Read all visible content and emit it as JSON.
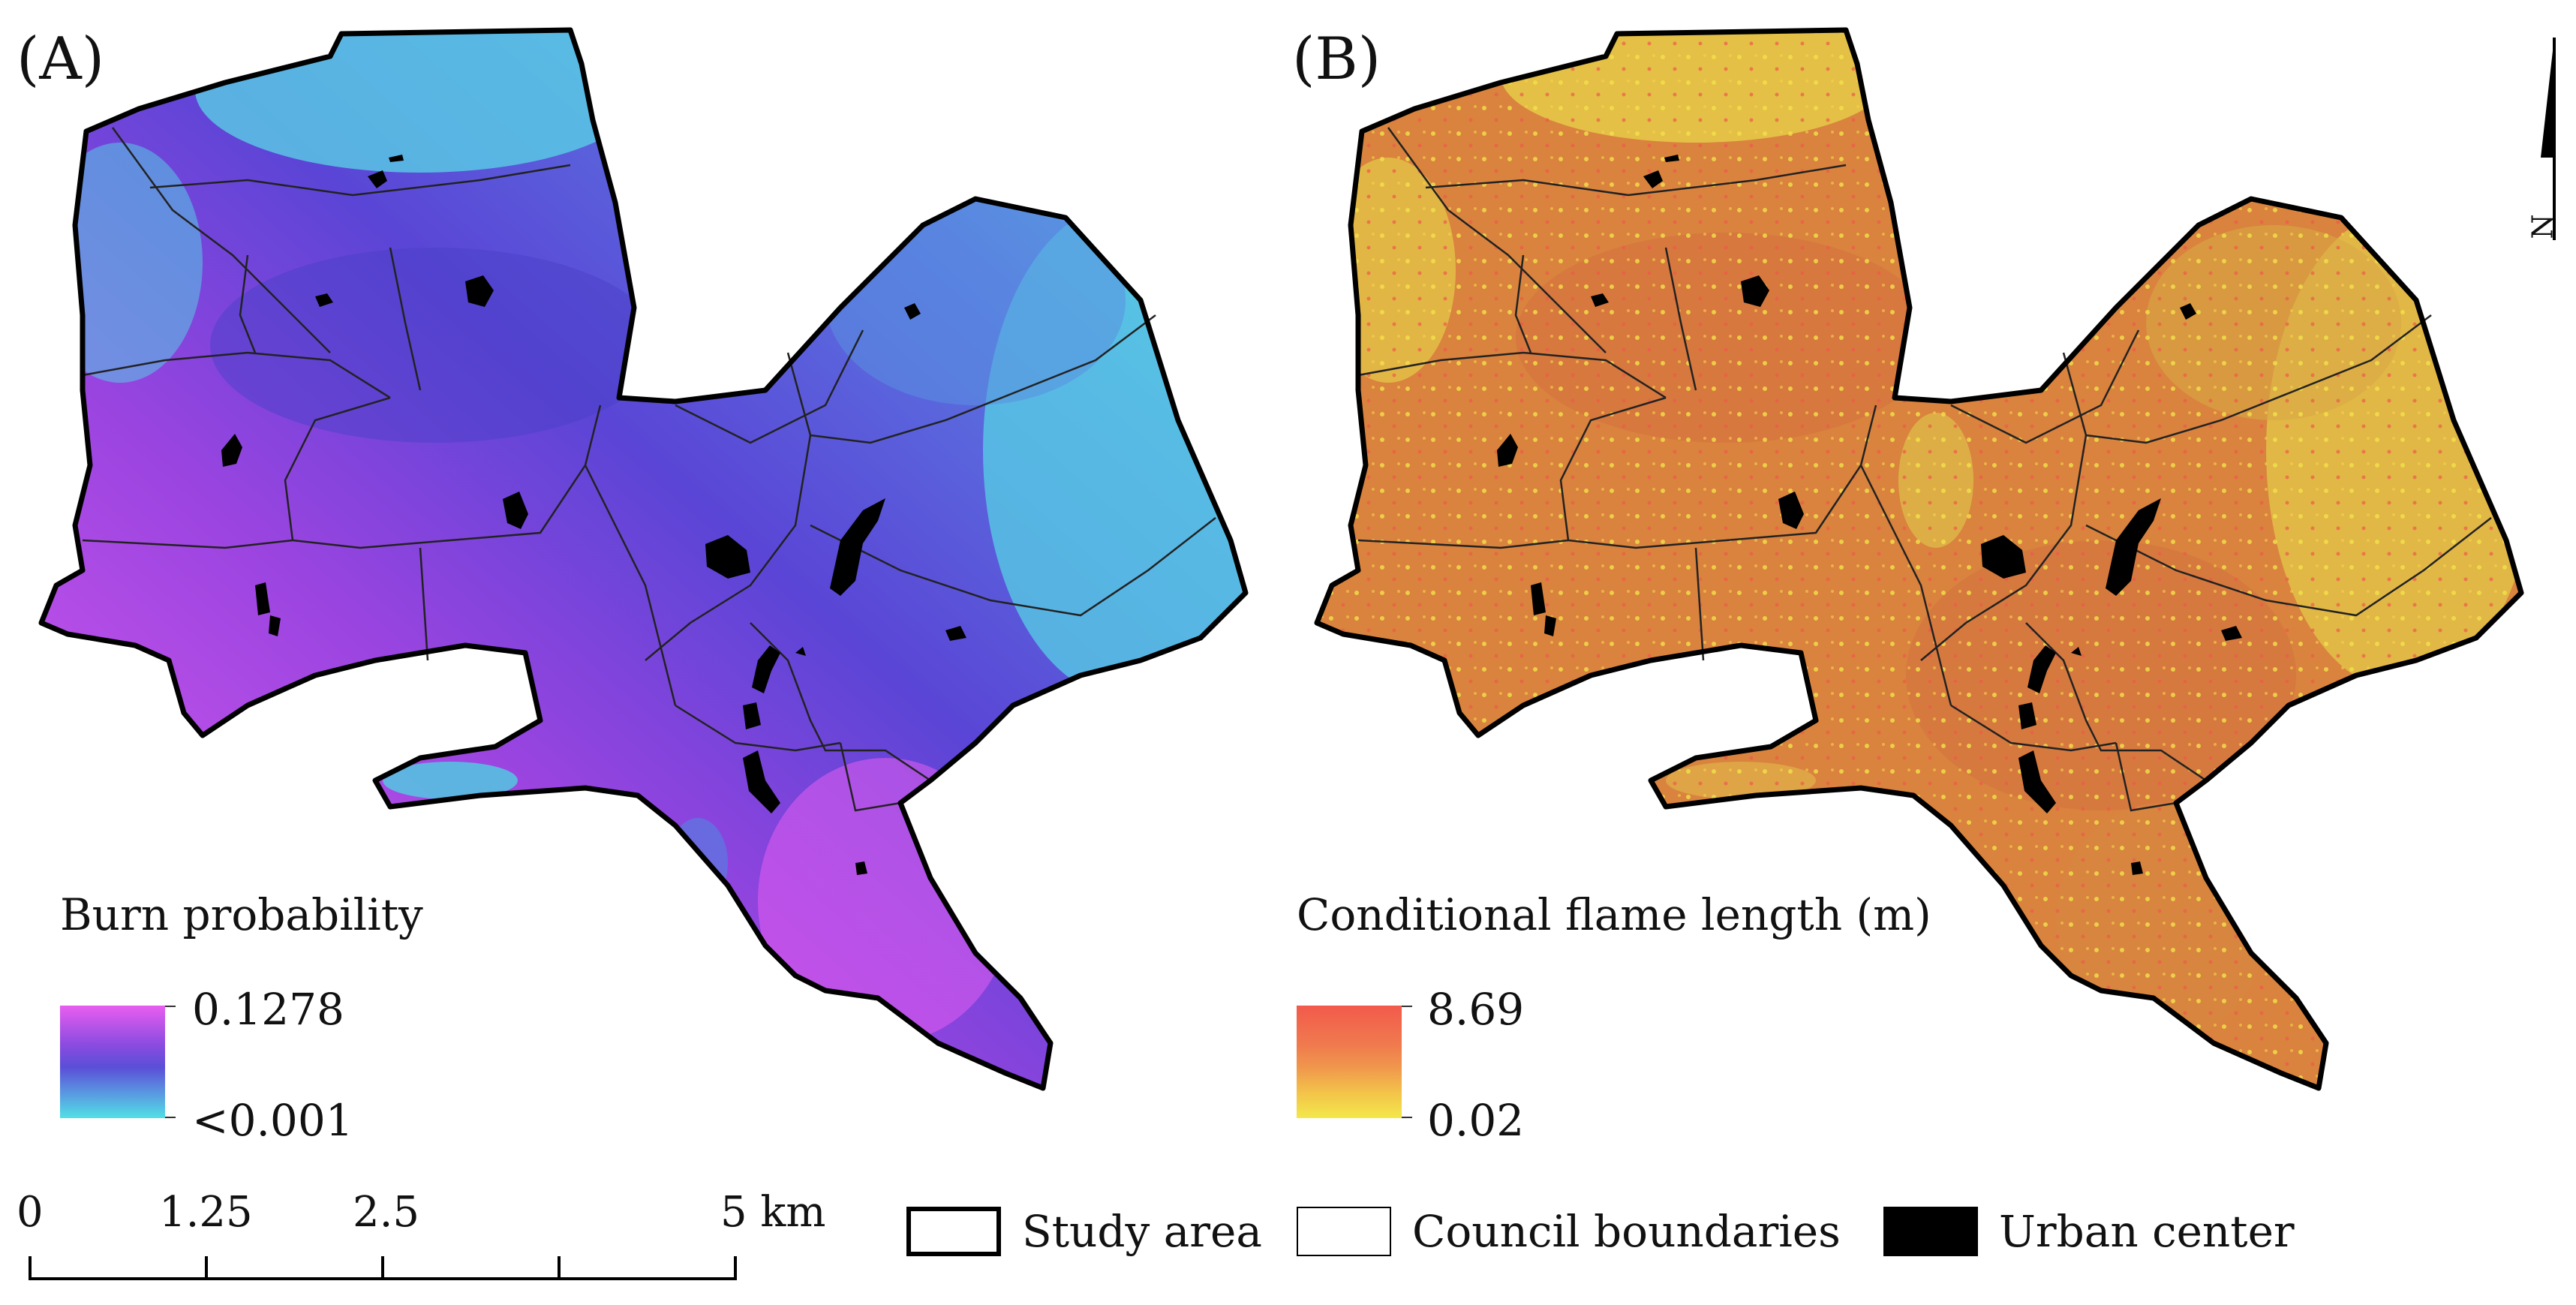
{
  "panels": [
    {
      "label": "(A)",
      "legend": {
        "title": "Burn probability",
        "max": "0.1278",
        "min": "<0.001",
        "colors": {
          "top": "#e85ef0",
          "mid": "#5a4fd8",
          "bottom": "#52e0e6"
        }
      }
    },
    {
      "label": "(B)",
      "legend": {
        "title": "Conditional flame length (m)",
        "max": "8.69",
        "min": "0.02",
        "colors": {
          "top": "#f25a4c",
          "mid": "#f08a4e",
          "bottom": "#f3e84a"
        }
      }
    }
  ],
  "north_arrow": {
    "label": "N",
    "icon": "north-arrow-icon"
  },
  "scale_bar": {
    "ticks": [
      "0",
      "1.25",
      "2.5",
      "5 km"
    ]
  },
  "key": {
    "study_area": "Study area",
    "council_boundaries": "Council boundaries",
    "urban_center": "Urban center"
  },
  "colors": {
    "boundary": "#000000",
    "urban": "#000000"
  }
}
